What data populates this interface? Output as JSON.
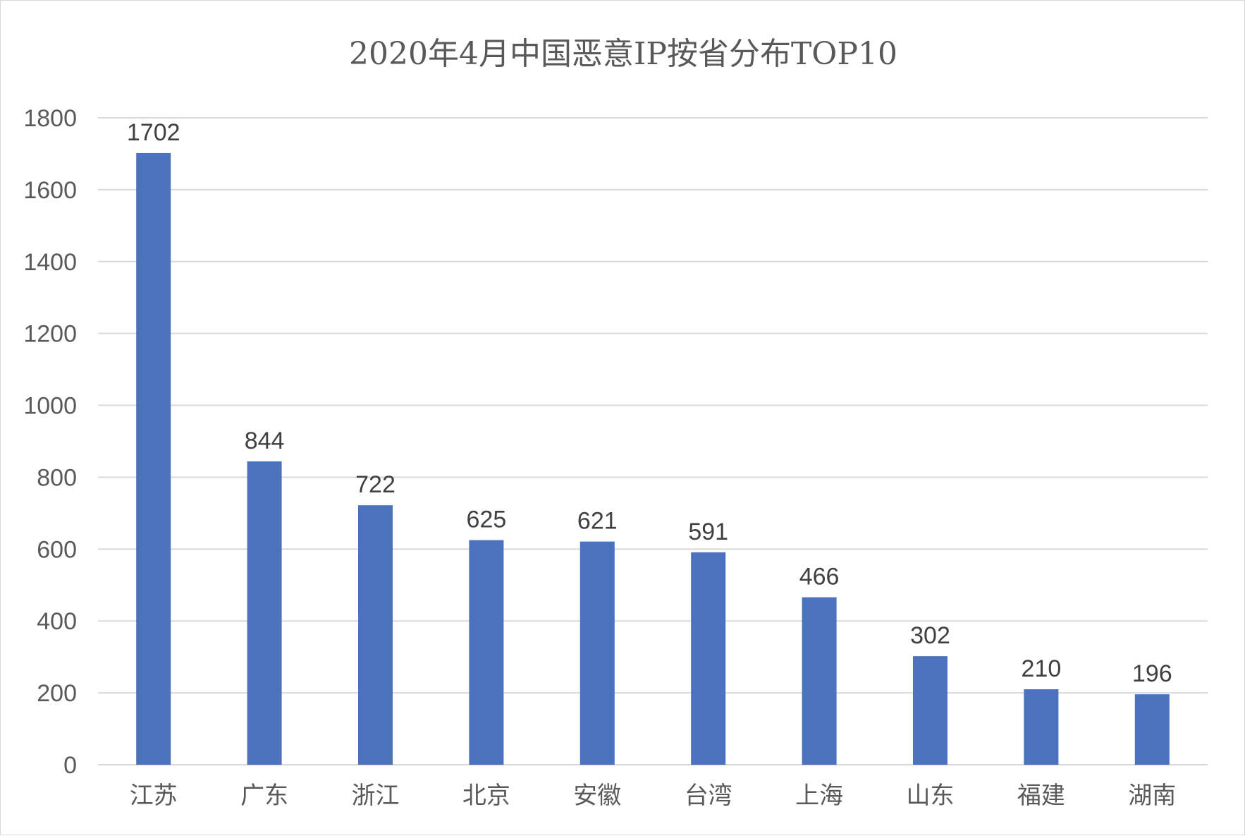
{
  "chart_data": {
    "type": "bar",
    "title": "2020年4月中国恶意IP按省分布TOP10",
    "xlabel": "",
    "ylabel": "",
    "categories": [
      "江苏",
      "广东",
      "浙江",
      "北京",
      "安徽",
      "台湾",
      "上海",
      "山东",
      "福建",
      "湖南"
    ],
    "values": [
      1702,
      844,
      722,
      625,
      621,
      591,
      466,
      302,
      210,
      196
    ],
    "yticks": [
      "0",
      "200",
      "400",
      "600",
      "800",
      "1000",
      "1200",
      "1400",
      "1600",
      "1800"
    ],
    "ylim": [
      0,
      1800
    ],
    "grid": true,
    "legend": "none",
    "data_labels": true,
    "bar_color": "#4a72bd"
  }
}
